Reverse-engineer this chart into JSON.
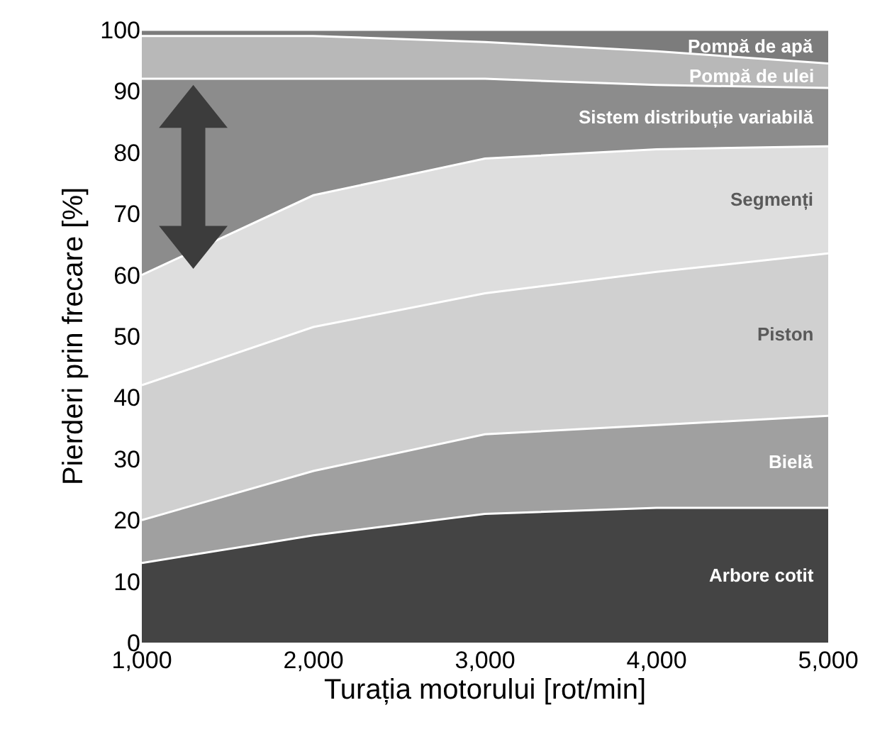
{
  "chart_data": {
    "type": "area",
    "stacked": true,
    "xlabel": "Turația motorului [rot/min]",
    "ylabel": "Pierderi prin frecare [%]",
    "x": [
      1000,
      2000,
      3000,
      4000,
      5000
    ],
    "series": [
      {
        "name": "Arbore cotit",
        "color": "#444444",
        "values": [
          13,
          17.5,
          21,
          22,
          22
        ]
      },
      {
        "name": "Bielă",
        "color": "#a0a0a0",
        "values": [
          7,
          10.5,
          13,
          13.5,
          15
        ]
      },
      {
        "name": "Piston",
        "color": "#d0d0d0",
        "values": [
          22,
          23.5,
          23,
          25,
          26.5
        ]
      },
      {
        "name": "Segmenți",
        "color": "#dedede",
        "values": [
          18,
          21.5,
          22,
          20,
          17.5
        ]
      },
      {
        "name": "Sistem distribuție variabilă",
        "color": "#8c8c8c",
        "values": [
          32,
          19,
          13,
          10.5,
          9.5
        ]
      },
      {
        "name": "Pompă de ulei",
        "color": "#b8b8b8",
        "values": [
          7,
          7,
          6,
          5.5,
          4
        ]
      },
      {
        "name": "Pompă de apă",
        "color": "#7c7c7c",
        "values": [
          1,
          1,
          2,
          3.5,
          5.5
        ]
      }
    ],
    "xlim": [
      1000,
      5000
    ],
    "xticks": [
      {
        "value": 1000,
        "label": "1,000"
      },
      {
        "value": 2000,
        "label": "2,000"
      },
      {
        "value": 3000,
        "label": "3,000"
      },
      {
        "value": 4000,
        "label": "4,000"
      },
      {
        "value": 5000,
        "label": "5,000"
      }
    ],
    "ylim": [
      0,
      100
    ],
    "yticks": [
      0,
      10,
      20,
      30,
      40,
      50,
      60,
      70,
      80,
      90,
      100
    ],
    "legend": false
  }
}
